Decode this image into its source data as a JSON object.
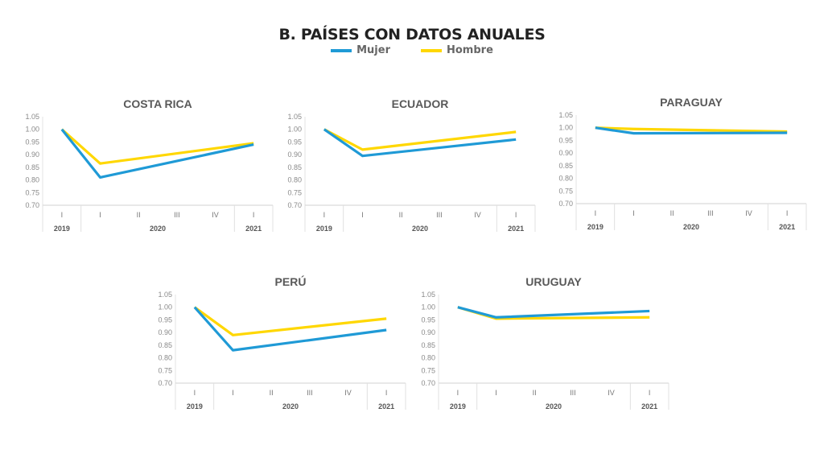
{
  "title": "B. PAÍSES CON DATOS ANUALES",
  "legend": [
    {
      "name": "Mujer",
      "color": "#1f9ad6"
    },
    {
      "name": "Hombre",
      "color": "#ffd700"
    }
  ],
  "chart_data": [
    {
      "type": "line",
      "title": "COSTA RICA",
      "categories": [
        "I",
        "I",
        "II",
        "III",
        "IV",
        "I"
      ],
      "groups": [
        "2019",
        "2020",
        "2021"
      ],
      "yticks": [
        "0.70",
        "0.75",
        "0.80",
        "0.85",
        "0.90",
        "0.95",
        "1.00",
        "1.05"
      ],
      "ylim": [
        0.7,
        1.05
      ],
      "series": [
        {
          "name": "Mujer",
          "values": [
            1.0,
            0.81,
            null,
            null,
            null,
            0.94
          ]
        },
        {
          "name": "Hombre",
          "values": [
            1.0,
            0.865,
            null,
            null,
            null,
            0.945
          ]
        }
      ]
    },
    {
      "type": "line",
      "title": "ECUADOR",
      "categories": [
        "I",
        "I",
        "II",
        "III",
        "IV",
        "I"
      ],
      "groups": [
        "2019",
        "2020",
        "2021"
      ],
      "yticks": [
        "0.70",
        "0.75",
        "0.80",
        "0.85",
        "0.90",
        "0.95",
        "1.00",
        "1.05"
      ],
      "ylim": [
        0.7,
        1.05
      ],
      "series": [
        {
          "name": "Mujer",
          "values": [
            1.0,
            0.895,
            null,
            null,
            null,
            0.96
          ]
        },
        {
          "name": "Hombre",
          "values": [
            1.0,
            0.92,
            null,
            null,
            null,
            0.99
          ]
        }
      ]
    },
    {
      "type": "line",
      "title": "PARAGUAY",
      "categories": [
        "I",
        "I",
        "II",
        "III",
        "IV",
        "I"
      ],
      "groups": [
        "2019",
        "2020",
        "2021"
      ],
      "yticks": [
        "0.70",
        "0.75",
        "0.80",
        "0.85",
        "0.90",
        "0.95",
        "1.00",
        "1.05"
      ],
      "ylim": [
        0.7,
        1.05
      ],
      "series": [
        {
          "name": "Mujer",
          "values": [
            1.0,
            0.978,
            null,
            null,
            null,
            0.98
          ]
        },
        {
          "name": "Hombre",
          "values": [
            1.0,
            0.995,
            null,
            null,
            null,
            0.985
          ]
        }
      ]
    },
    {
      "type": "line",
      "title": "PERÚ",
      "categories": [
        "I",
        "I",
        "II",
        "III",
        "IV",
        "I"
      ],
      "groups": [
        "2019",
        "2020",
        "2021"
      ],
      "yticks": [
        "0.70",
        "0.75",
        "0.80",
        "0.85",
        "0.90",
        "0.95",
        "1.00",
        "1.05"
      ],
      "ylim": [
        0.7,
        1.05
      ],
      "series": [
        {
          "name": "Mujer",
          "values": [
            1.0,
            0.83,
            null,
            null,
            null,
            0.91
          ]
        },
        {
          "name": "Hombre",
          "values": [
            1.0,
            0.89,
            null,
            null,
            null,
            0.955
          ]
        }
      ]
    },
    {
      "type": "line",
      "title": "URUGUAY",
      "categories": [
        "I",
        "I",
        "II",
        "III",
        "IV",
        "I"
      ],
      "groups": [
        "2019",
        "2020",
        "2021"
      ],
      "yticks": [
        "0.70",
        "0.75",
        "0.80",
        "0.85",
        "0.90",
        "0.95",
        "1.00",
        "1.05"
      ],
      "ylim": [
        0.7,
        1.05
      ],
      "series": [
        {
          "name": "Mujer",
          "values": [
            1.0,
            0.96,
            null,
            null,
            null,
            0.985
          ]
        },
        {
          "name": "Hombre",
          "values": [
            1.0,
            0.955,
            null,
            null,
            null,
            0.96
          ]
        }
      ]
    }
  ]
}
